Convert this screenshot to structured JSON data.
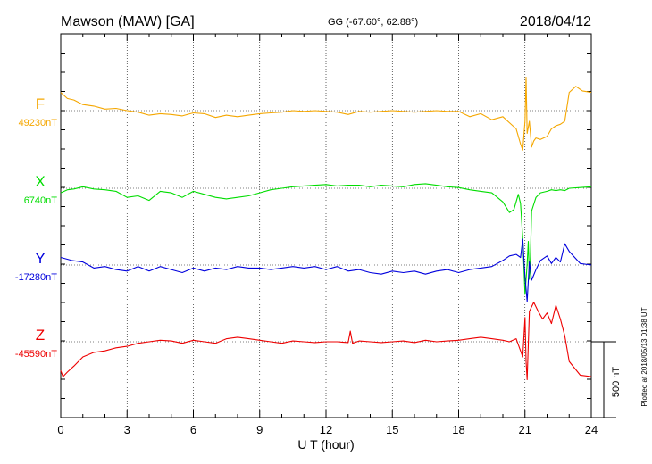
{
  "header": {
    "station": "Mawson (MAW)  [GA]",
    "coords": "GG (-67.60°,  62.88°)",
    "date": "2018/04/12"
  },
  "chart_data": {
    "type": "line",
    "xlabel": "U T (hour)",
    "xlim": [
      0,
      24
    ],
    "xticks": [
      "0",
      "3",
      "6",
      "9",
      "12",
      "15",
      "18",
      "21",
      "24"
    ],
    "y_scale_nT_per_division": 500,
    "scale_bar_label": "500 nT",
    "plotted_note": "Plotted at 2018/05/13 01:38 UT",
    "series": [
      {
        "name": "F",
        "baseline_label": "49230nT",
        "color": "#f5a700",
        "x": [
          0,
          0.3,
          0.6,
          1,
          1.5,
          2,
          2.5,
          3,
          3.5,
          4,
          4.5,
          5,
          5.5,
          6,
          6.5,
          7,
          7.5,
          8,
          8.5,
          9,
          9.5,
          10,
          10.5,
          11,
          11.5,
          12,
          12.5,
          13,
          13.5,
          14,
          14.5,
          15,
          15.5,
          16,
          16.5,
          17,
          17.5,
          18,
          18.5,
          19,
          19.5,
          20,
          20.3,
          20.6,
          20.8,
          20.9,
          21,
          21.05,
          21.1,
          21.2,
          21.3,
          21.4,
          21.5,
          21.7,
          22,
          22.2,
          22.4,
          22.6,
          22.8,
          23,
          23.3,
          23.6,
          24
        ],
        "values": [
          120,
          80,
          70,
          40,
          30,
          10,
          15,
          0,
          -10,
          -30,
          -20,
          -25,
          -35,
          -15,
          -20,
          -45,
          -30,
          -40,
          -30,
          -20,
          -15,
          -10,
          0,
          -5,
          0,
          -5,
          -10,
          -25,
          -5,
          -10,
          -5,
          0,
          -5,
          -10,
          -5,
          0,
          -5,
          -5,
          -40,
          -20,
          -60,
          -40,
          -80,
          -120,
          -220,
          -260,
          -70,
          220,
          -150,
          -70,
          -240,
          -200,
          -180,
          -190,
          -170,
          -120,
          -100,
          -90,
          -70,
          120,
          160,
          130,
          120
        ]
      },
      {
        "name": "X",
        "baseline_label": "6740nT",
        "color": "#00dd00",
        "x": [
          0,
          0.3,
          0.6,
          1,
          1.5,
          2,
          2.5,
          3,
          3.5,
          4,
          4.5,
          5,
          5.5,
          6,
          6.5,
          7,
          7.5,
          8,
          8.5,
          9,
          9.5,
          10,
          10.5,
          11,
          11.5,
          12,
          12.5,
          13,
          13.5,
          14,
          14.5,
          15,
          15.5,
          16,
          16.5,
          17,
          17.5,
          18,
          18.5,
          19,
          19.5,
          20,
          20.3,
          20.5,
          20.7,
          20.8,
          20.9,
          21,
          21.1,
          21.15,
          21.2,
          21.25,
          21.3,
          21.5,
          21.7,
          22,
          22.2,
          22.4,
          22.6,
          22.8,
          23,
          23.5,
          24
        ],
        "values": [
          -30,
          -10,
          -5,
          10,
          -5,
          -10,
          -20,
          -60,
          -50,
          -80,
          -20,
          -30,
          -60,
          -20,
          -40,
          -60,
          -70,
          -60,
          -50,
          -30,
          -10,
          0,
          10,
          15,
          20,
          25,
          15,
          20,
          20,
          10,
          20,
          15,
          10,
          25,
          30,
          20,
          10,
          5,
          -10,
          -20,
          -30,
          -90,
          -160,
          -140,
          -40,
          -100,
          -330,
          -700,
          -500,
          -350,
          -600,
          -450,
          -150,
          -60,
          -30,
          -20,
          -10,
          -15,
          -10,
          -15,
          0,
          5,
          10
        ]
      },
      {
        "name": "Y",
        "baseline_label": "-17280nT",
        "color": "#0000dd",
        "x": [
          0,
          0.5,
          1,
          1.5,
          2,
          2.5,
          3,
          3.5,
          4,
          4.5,
          5,
          5.5,
          6,
          6.5,
          7,
          7.5,
          8,
          8.5,
          9,
          9.5,
          10,
          10.5,
          11,
          11.5,
          12,
          12.5,
          13,
          13.5,
          14,
          14.5,
          15,
          15.5,
          16,
          16.5,
          17,
          17.5,
          18,
          18.5,
          19,
          19.5,
          20,
          20.3,
          20.6,
          20.8,
          20.9,
          21,
          21.1,
          21.2,
          21.3,
          21.5,
          21.7,
          22,
          22.2,
          22.4,
          22.6,
          22.8,
          23,
          23.5,
          24
        ],
        "values": [
          50,
          30,
          20,
          -20,
          -10,
          -30,
          -40,
          -10,
          -40,
          -10,
          -30,
          -50,
          -20,
          -40,
          -20,
          -30,
          -10,
          -20,
          -20,
          -30,
          -20,
          -10,
          -20,
          -10,
          -30,
          -10,
          -40,
          -30,
          -50,
          -60,
          -40,
          -50,
          -40,
          -60,
          -40,
          -30,
          -50,
          -30,
          -20,
          -10,
          30,
          60,
          70,
          50,
          170,
          -80,
          -240,
          20,
          -100,
          -30,
          30,
          60,
          10,
          50,
          20,
          140,
          90,
          10,
          0
        ]
      },
      {
        "name": "Z",
        "baseline_label": "-45590nT",
        "color": "#ee0000",
        "x": [
          0,
          0.1,
          0.3,
          0.6,
          1,
          1.5,
          2,
          2.5,
          3,
          3.5,
          4,
          4.5,
          5,
          5.5,
          6,
          6.5,
          7,
          7.5,
          8,
          8.5,
          9,
          9.5,
          10,
          10.5,
          11,
          11.5,
          12,
          12.5,
          13,
          13.1,
          13.2,
          13.5,
          14,
          14.5,
          15,
          15.5,
          16,
          16.5,
          17,
          17.5,
          18,
          18.5,
          19,
          19.5,
          20,
          20.3,
          20.6,
          20.8,
          20.9,
          21,
          21.05,
          21.1,
          21.2,
          21.4,
          21.6,
          21.8,
          22,
          22.2,
          22.4,
          22.6,
          22.8,
          23,
          23.5,
          24
        ],
        "values": [
          -190,
          -230,
          -200,
          -160,
          -100,
          -70,
          -60,
          -40,
          -30,
          -10,
          0,
          10,
          5,
          -10,
          10,
          0,
          -10,
          20,
          30,
          20,
          10,
          0,
          -10,
          5,
          0,
          -5,
          0,
          0,
          -5,
          70,
          -10,
          5,
          0,
          -5,
          0,
          5,
          -5,
          10,
          0,
          5,
          10,
          20,
          30,
          20,
          10,
          0,
          20,
          -60,
          -100,
          160,
          -130,
          -250,
          200,
          260,
          200,
          150,
          190,
          120,
          240,
          150,
          40,
          -130,
          -220,
          -230
        ]
      }
    ]
  }
}
